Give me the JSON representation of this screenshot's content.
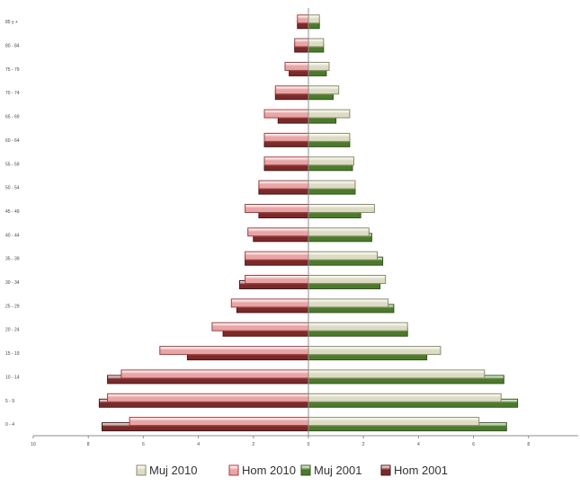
{
  "chart_data": {
    "type": "bar",
    "orientation": "horizontal",
    "title": "",
    "xlabel": "",
    "ylabel": "",
    "xlim": [
      -10,
      10
    ],
    "x_ticks": [
      -10,
      -8,
      -6,
      -4,
      -2,
      0,
      2,
      4,
      6,
      8
    ],
    "x_tick_labels": [
      "10",
      "8",
      "6",
      "4",
      "2",
      "0",
      "2",
      "4",
      "6",
      "8"
    ],
    "grid": false,
    "legend_position": "bottom",
    "categories": [
      "0 - 4",
      "5 - 9",
      "10 - 14",
      "15 - 19",
      "20 - 24",
      "25 - 29",
      "30 - 34",
      "35 - 39",
      "40 - 44",
      "45 - 49",
      "50 - 54",
      "55 - 59",
      "60 - 64",
      "65 - 69",
      "70 - 74",
      "75 - 79",
      "80 - 84",
      "85 y +"
    ],
    "series": [
      {
        "name": "Muj 2010",
        "side": "right",
        "color": "#dcdcc4",
        "values": [
          6.2,
          7.0,
          6.4,
          4.8,
          3.6,
          2.9,
          2.8,
          2.5,
          2.2,
          2.4,
          1.7,
          1.65,
          1.5,
          1.5,
          1.1,
          0.75,
          0.55,
          0.4
        ]
      },
      {
        "name": "Hom 2010",
        "side": "left",
        "color": "#e8a5a5",
        "values": [
          6.5,
          7.3,
          6.8,
          5.4,
          3.5,
          2.8,
          2.3,
          2.3,
          2.2,
          2.3,
          1.8,
          1.6,
          1.6,
          1.6,
          1.2,
          0.85,
          0.5,
          0.4
        ]
      },
      {
        "name": "Muj 2001",
        "side": "right",
        "color": "#4c7a2c",
        "values": [
          7.2,
          7.6,
          7.1,
          4.3,
          3.6,
          3.1,
          2.6,
          2.7,
          2.3,
          1.9,
          1.7,
          1.6,
          1.5,
          1.0,
          0.9,
          0.65,
          0.55,
          0.4
        ]
      },
      {
        "name": "Hom 2001",
        "side": "left",
        "color": "#7a2a2a",
        "values": [
          7.5,
          7.6,
          7.3,
          4.4,
          3.1,
          2.6,
          2.5,
          2.3,
          2.0,
          1.8,
          1.8,
          1.6,
          1.6,
          1.1,
          1.2,
          0.7,
          0.5,
          0.4
        ]
      }
    ],
    "bar_style": "3d-shaded"
  }
}
